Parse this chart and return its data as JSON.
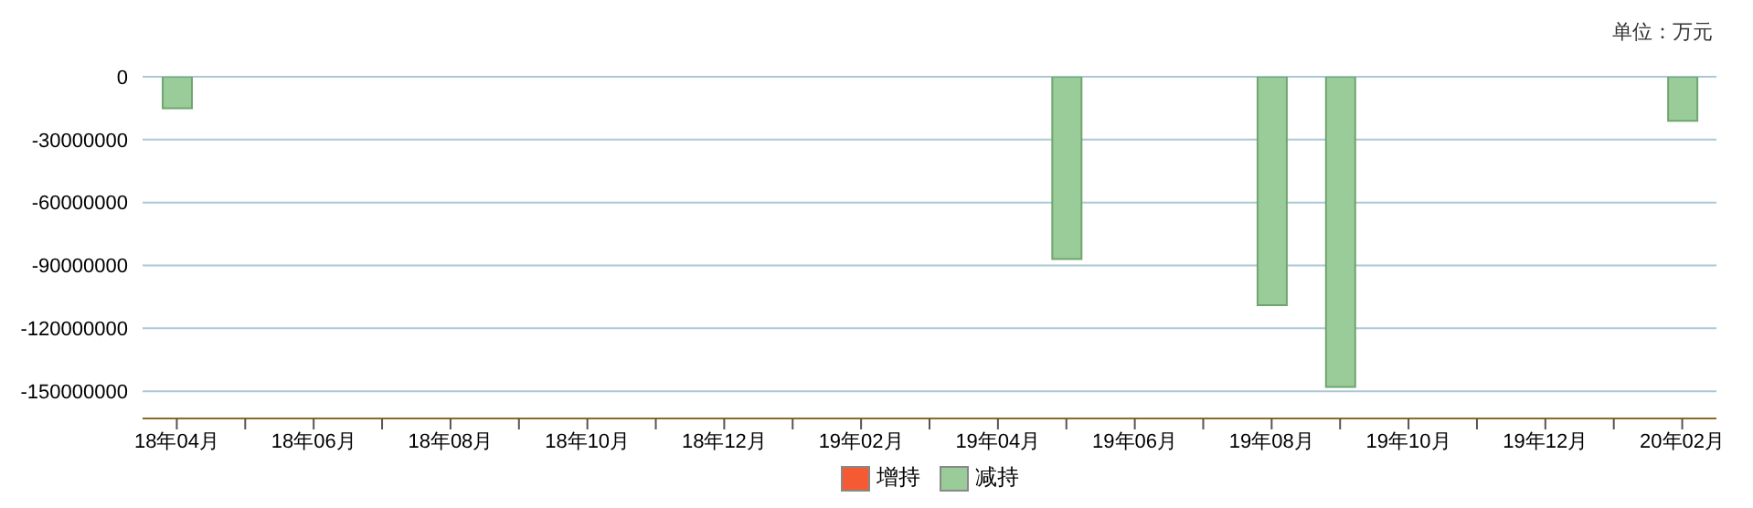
{
  "chart_data": {
    "type": "bar",
    "annotations": [
      "单位：万元"
    ],
    "categories": [
      "18年04月",
      null,
      "18年06月",
      null,
      "18年08月",
      null,
      "18年10月",
      null,
      "18年12月",
      null,
      "19年02月",
      null,
      "19年04月",
      null,
      "19年06月",
      null,
      "19年08月",
      null,
      "19年10月",
      null,
      "19年12月",
      null,
      "20年02月"
    ],
    "series": [
      {
        "name": "增持",
        "color": "#f65a33",
        "values": [
          null,
          null,
          null,
          null,
          null,
          null,
          null,
          null,
          null,
          null,
          null,
          null,
          null,
          null,
          null,
          null,
          null,
          null,
          null,
          null,
          null,
          null,
          null
        ]
      },
      {
        "name": "减持",
        "color": "#99cc99",
        "values": [
          -15000000,
          null,
          null,
          null,
          null,
          null,
          null,
          null,
          null,
          null,
          null,
          null,
          null,
          -87000000,
          null,
          null,
          -109000000,
          -148000000,
          null,
          null,
          null,
          null,
          -21000000
        ]
      }
    ],
    "ylim": [
      -163000000,
      0
    ],
    "yticks": [
      0,
      -30000000,
      -60000000,
      -90000000,
      -120000000,
      -150000000
    ],
    "grid": "y",
    "legend": "bottom"
  }
}
